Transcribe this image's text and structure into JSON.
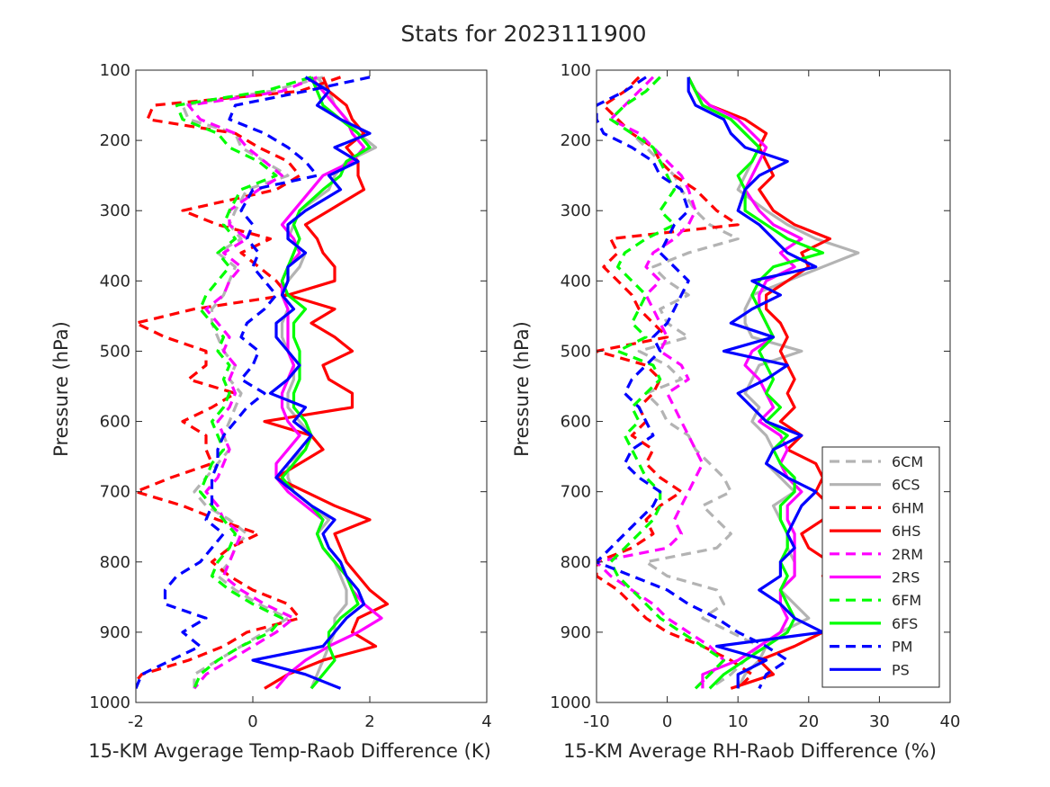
{
  "figure_title": "Stats for 2023111900",
  "legend": [
    {
      "label": "6CM",
      "color": "#b3b3b3",
      "dashed": true
    },
    {
      "label": "6CS",
      "color": "#b3b3b3",
      "dashed": false
    },
    {
      "label": "6HM",
      "color": "#ff0000",
      "dashed": true
    },
    {
      "label": "6HS",
      "color": "#ff0000",
      "dashed": false
    },
    {
      "label": "2RM",
      "color": "#ff00ff",
      "dashed": true
    },
    {
      "label": "2RS",
      "color": "#ff00ff",
      "dashed": false
    },
    {
      "label": "6FM",
      "color": "#00ff00",
      "dashed": true
    },
    {
      "label": "6FS",
      "color": "#00ff00",
      "dashed": false
    },
    {
      "label": "PM",
      "color": "#0000ff",
      "dashed": true
    },
    {
      "label": "PS",
      "color": "#0000ff",
      "dashed": false
    }
  ],
  "chart_data": [
    {
      "type": "line",
      "xlabel": "15-KM Avgerage Temp-Raob Difference (K)",
      "ylabel": "Pressure (hPa)",
      "xlim": [
        -2,
        4
      ],
      "ylim": [
        100,
        1000
      ],
      "y_reversed": true,
      "xticks": [
        "-2",
        "0",
        "2",
        "4"
      ],
      "yticks": [
        "100",
        "200",
        "300",
        "400",
        "500",
        "600",
        "700",
        "800",
        "900",
        "1000"
      ],
      "pressure_levels": [
        110,
        130,
        150,
        170,
        190,
        210,
        230,
        250,
        270,
        300,
        320,
        340,
        360,
        380,
        400,
        420,
        440,
        460,
        480,
        500,
        520,
        540,
        560,
        580,
        600,
        620,
        640,
        660,
        680,
        700,
        720,
        740,
        760,
        780,
        800,
        820,
        840,
        860,
        880,
        900,
        920,
        940,
        960,
        980
      ],
      "series": [
        {
          "name": "6CM",
          "values": [
            1.2,
            0.3,
            -1.2,
            -1.1,
            -0.3,
            -0.2,
            0.2,
            0.6,
            -0.1,
            -0.3,
            -0.4,
            -0.2,
            -0.6,
            -0.3,
            -0.4,
            -0.5,
            -0.7,
            -0.7,
            -0.6,
            -0.5,
            -0.3,
            -0.4,
            -0.2,
            -0.3,
            -0.4,
            -0.5,
            -0.4,
            -0.6,
            -0.8,
            -1.0,
            -0.8,
            -0.4,
            -0.1,
            -0.3,
            -0.4,
            -0.6,
            -0.3,
            0.1,
            0.6,
            0.2,
            -0.2,
            -0.6,
            -1.0,
            -1.0
          ]
        },
        {
          "name": "6CS",
          "values": [
            1.1,
            1.3,
            1.4,
            1.6,
            1.8,
            2.1,
            1.6,
            1.4,
            1.3,
            0.8,
            0.7,
            0.6,
            0.9,
            0.8,
            0.6,
            0.5,
            0.6,
            0.5,
            0.5,
            0.6,
            0.7,
            0.7,
            0.6,
            0.6,
            0.8,
            1.0,
            0.9,
            0.6,
            0.6,
            0.7,
            1.0,
            1.3,
            1.1,
            1.2,
            1.4,
            1.5,
            1.6,
            1.6,
            1.4,
            1.4,
            1.3,
            1.2,
            1.1,
            1.0
          ]
        },
        {
          "name": "6HM",
          "values": [
            1.5,
            0.8,
            -1.7,
            -1.8,
            -0.3,
            0.1,
            0.6,
            0.8,
            0.4,
            -1.2,
            -0.6,
            0.3,
            -0.2,
            0.1,
            0.4,
            0.6,
            -1.0,
            -2.0,
            -1.5,
            -0.8,
            -0.8,
            -1.1,
            -0.3,
            -0.7,
            -1.2,
            -0.8,
            -0.8,
            -0.7,
            -1.4,
            -2.0,
            -1.2,
            -0.6,
            0.1,
            -0.4,
            -0.7,
            -0.4,
            0.0,
            0.6,
            0.8,
            -0.1,
            -0.5,
            -1.1,
            -1.9,
            -2.1
          ]
        },
        {
          "name": "6HS",
          "values": [
            1.2,
            1.3,
            1.6,
            1.7,
            1.9,
            1.6,
            1.8,
            1.8,
            1.9,
            1.3,
            0.9,
            1.1,
            1.2,
            1.4,
            1.4,
            0.6,
            1.4,
            1.0,
            1.4,
            1.7,
            1.2,
            1.3,
            1.7,
            1.7,
            0.2,
            1.0,
            1.2,
            0.8,
            0.4,
            0.9,
            1.4,
            2.0,
            1.4,
            1.5,
            1.6,
            1.8,
            2.0,
            2.3,
            1.8,
            1.7,
            2.1,
            1.2,
            0.6,
            0.2
          ]
        },
        {
          "name": "2RM",
          "values": [
            1.1,
            0.5,
            -1.1,
            -0.9,
            -0.3,
            -0.1,
            0.2,
            0.5,
            0.1,
            -0.4,
            -0.4,
            -0.1,
            -0.5,
            -0.2,
            -0.4,
            -0.5,
            -0.8,
            -0.6,
            -0.4,
            -0.5,
            -0.3,
            -0.4,
            -0.3,
            -0.4,
            -0.6,
            -0.5,
            -0.4,
            -0.5,
            -0.6,
            -0.8,
            -0.6,
            -0.5,
            -0.2,
            -0.3,
            -0.4,
            -0.5,
            -0.2,
            0.2,
            0.7,
            0.4,
            0.0,
            -0.4,
            -0.8,
            -1.0
          ]
        },
        {
          "name": "2RS",
          "values": [
            1.0,
            1.2,
            1.4,
            1.6,
            1.7,
            1.9,
            1.7,
            1.2,
            1.0,
            0.7,
            0.5,
            0.7,
            0.8,
            0.6,
            0.5,
            0.5,
            0.6,
            0.6,
            0.6,
            0.6,
            0.7,
            0.6,
            0.5,
            0.5,
            0.6,
            0.8,
            0.6,
            0.4,
            0.4,
            0.6,
            0.9,
            1.2,
            1.1,
            1.2,
            1.4,
            1.6,
            1.7,
            1.9,
            2.2,
            1.8,
            1.3,
            0.9,
            0.6,
            0.4
          ]
        },
        {
          "name": "6FM",
          "values": [
            1.0,
            0.2,
            -1.3,
            -1.2,
            -0.6,
            -0.4,
            0.1,
            0.4,
            -0.2,
            -0.4,
            -0.5,
            -0.3,
            -0.6,
            -0.4,
            -0.6,
            -0.8,
            -0.9,
            -0.7,
            -0.5,
            -0.6,
            -0.4,
            -0.5,
            -0.4,
            -0.5,
            -0.7,
            -0.6,
            -0.5,
            -0.7,
            -0.8,
            -0.9,
            -0.7,
            -0.5,
            -0.3,
            -0.4,
            -0.6,
            -0.7,
            -0.4,
            0.0,
            0.5,
            0.3,
            -0.2,
            -0.6,
            -0.9,
            -1.0
          ]
        },
        {
          "name": "6FS",
          "values": [
            1.0,
            1.1,
            1.2,
            1.5,
            1.8,
            2.0,
            1.6,
            1.5,
            1.2,
            0.8,
            0.7,
            0.8,
            0.7,
            0.6,
            0.5,
            0.6,
            0.9,
            0.7,
            0.7,
            0.8,
            0.8,
            0.8,
            0.7,
            0.7,
            0.9,
            1.0,
            0.9,
            0.7,
            0.5,
            0.7,
            1.0,
            1.2,
            1.1,
            1.2,
            1.4,
            1.6,
            1.7,
            1.8,
            1.5,
            1.3,
            1.3,
            1.4,
            1.2,
            1.0
          ]
        },
        {
          "name": "PM",
          "values": [
            2.0,
            0.9,
            -0.3,
            -0.4,
            0.2,
            0.6,
            0.9,
            1.1,
            0.0,
            -0.2,
            0.0,
            -0.1,
            0.1,
            0.0,
            0.2,
            0.4,
            0.2,
            -0.1,
            -0.2,
            0.1,
            0.0,
            -0.2,
            0.2,
            -0.1,
            -0.3,
            -0.5,
            -0.6,
            -0.6,
            -0.7,
            -0.7,
            -0.7,
            -0.8,
            -0.5,
            -0.7,
            -0.9,
            -1.3,
            -1.5,
            -1.5,
            -0.8,
            -1.2,
            -0.9,
            -1.4,
            -1.9,
            -2.0
          ]
        },
        {
          "name": "PS",
          "values": [
            0.9,
            1.3,
            1.1,
            1.5,
            2.0,
            1.4,
            1.8,
            1.3,
            1.5,
            0.9,
            0.6,
            0.6,
            0.9,
            0.6,
            0.6,
            0.5,
            0.7,
            0.4,
            0.4,
            0.6,
            0.8,
            0.6,
            0.3,
            0.9,
            0.7,
            1.0,
            0.8,
            0.6,
            0.4,
            0.7,
            1.0,
            1.4,
            1.2,
            1.3,
            1.5,
            1.6,
            1.8,
            1.9,
            1.6,
            1.4,
            1.2,
            0.0,
            0.9,
            1.5
          ]
        }
      ]
    },
    {
      "type": "line",
      "xlabel": "15-KM Average RH-Raob Difference (%)",
      "ylabel": "Pressure (hPa)",
      "xlim": [
        -10,
        40
      ],
      "ylim": [
        100,
        1000
      ],
      "y_reversed": true,
      "xticks": [
        "-10",
        "0",
        "10",
        "20",
        "30",
        "40"
      ],
      "yticks": [
        "100",
        "200",
        "300",
        "400",
        "500",
        "600",
        "700",
        "800",
        "900",
        "1000"
      ],
      "pressure_levels": [
        110,
        130,
        150,
        170,
        190,
        210,
        230,
        250,
        270,
        300,
        320,
        340,
        360,
        380,
        400,
        420,
        440,
        460,
        480,
        500,
        520,
        540,
        560,
        580,
        600,
        620,
        640,
        660,
        680,
        700,
        720,
        740,
        760,
        780,
        800,
        820,
        840,
        860,
        880,
        900,
        920,
        940,
        960,
        980
      ],
      "series": [
        {
          "name": "6CM",
          "values": [
            -1,
            -3,
            -6,
            -8,
            -5,
            -3,
            -1,
            1,
            2,
            4,
            6,
            10,
            3,
            -2,
            0,
            3,
            -1,
            0,
            3,
            -4,
            0,
            2,
            -3,
            -1,
            0,
            3,
            4,
            6,
            8,
            9,
            5,
            7,
            9,
            7,
            -3,
            0,
            7,
            8,
            5,
            9,
            13,
            11,
            9,
            6
          ]
        },
        {
          "name": "6CS",
          "values": [
            3,
            4,
            5,
            9,
            11,
            13,
            12,
            11,
            10,
            14,
            17,
            21,
            27,
            22,
            17,
            12,
            11,
            11,
            12,
            19,
            13,
            12,
            11,
            13,
            12,
            14,
            15,
            14,
            16,
            18,
            15,
            16,
            17,
            17,
            18,
            18,
            16,
            18,
            20,
            16,
            14,
            13,
            11,
            10
          ]
        },
        {
          "name": "6HM",
          "values": [
            -4,
            -6,
            -9,
            -7,
            -5,
            -2,
            -1,
            1,
            4,
            7,
            10,
            -8,
            -7,
            -9,
            -7,
            -5,
            -4,
            -2,
            0,
            -10,
            -3,
            -1,
            -2,
            -4,
            -3,
            -5,
            -2,
            -3,
            -1,
            2,
            -1,
            -3,
            -2,
            -5,
            -10,
            -10,
            -7,
            -5,
            -3,
            0,
            5,
            9,
            12,
            10
          ]
        },
        {
          "name": "6HS",
          "values": [
            3,
            4,
            6,
            11,
            14,
            13,
            14,
            15,
            13,
            15,
            18,
            23,
            19,
            20,
            17,
            14,
            14,
            16,
            17,
            16,
            17,
            18,
            17,
            18,
            16,
            19,
            17,
            21,
            22,
            21,
            23,
            22,
            19,
            20,
            23,
            22,
            24,
            26,
            24,
            22,
            18,
            13,
            15,
            9
          ]
        },
        {
          "name": "2RM",
          "values": [
            -2,
            -4,
            -6,
            -8,
            -4,
            -2,
            0,
            2,
            3,
            4,
            3,
            1,
            -2,
            -3,
            -1,
            -3,
            -2,
            -1,
            0,
            -1,
            2,
            3,
            0,
            1,
            2,
            3,
            4,
            5,
            4,
            3,
            2,
            1,
            2,
            0,
            -10,
            -8,
            -5,
            -2,
            0,
            3,
            6,
            8,
            6,
            4
          ]
        },
        {
          "name": "2RS",
          "values": [
            3,
            4,
            6,
            10,
            12,
            14,
            13,
            12,
            11,
            13,
            15,
            19,
            16,
            18,
            14,
            13,
            13,
            14,
            15,
            12,
            11,
            13,
            14,
            15,
            13,
            16,
            17,
            16,
            17,
            19,
            17,
            17,
            18,
            18,
            18,
            18,
            16,
            16,
            17,
            16,
            13,
            10,
            5,
            5
          ]
        },
        {
          "name": "6FM",
          "values": [
            -1,
            -3,
            -6,
            -8,
            -5,
            -2,
            -1,
            0,
            1,
            -1,
            1,
            -3,
            -6,
            -7,
            -5,
            -3,
            -4,
            -5,
            -3,
            -7,
            -2,
            -1,
            -3,
            -5,
            -4,
            -6,
            -5,
            -4,
            -3,
            -1,
            -1,
            -2,
            -4,
            -6,
            -8,
            -7,
            -5,
            -3,
            -1,
            2,
            5,
            8,
            6,
            4
          ]
        },
        {
          "name": "6FS",
          "values": [
            3,
            4,
            5,
            9,
            11,
            13,
            12,
            10,
            11,
            11,
            14,
            17,
            22,
            15,
            13,
            12,
            13,
            14,
            15,
            13,
            14,
            15,
            14,
            16,
            14,
            17,
            15,
            16,
            18,
            18,
            16,
            16,
            17,
            17,
            16,
            17,
            16,
            17,
            18,
            17,
            14,
            11,
            8,
            6
          ]
        },
        {
          "name": "PM",
          "values": [
            -3,
            -6,
            -10,
            -10,
            -9,
            -5,
            -2,
            -1,
            2,
            3,
            1,
            0,
            -1,
            1,
            3,
            2,
            1,
            0,
            -2,
            -1,
            -3,
            -5,
            -6,
            -4,
            -3,
            -2,
            -5,
            -6,
            -4,
            -1,
            -2,
            -4,
            -6,
            -8,
            -10,
            -5,
            0,
            3,
            7,
            10,
            14,
            17,
            14,
            13
          ]
        },
        {
          "name": "PS",
          "values": [
            3,
            3,
            4,
            8,
            9,
            11,
            17,
            13,
            11,
            10,
            13,
            15,
            17,
            21,
            12,
            16,
            12,
            9,
            15,
            8,
            17,
            14,
            10,
            12,
            14,
            19,
            15,
            14,
            17,
            21,
            19,
            18,
            17,
            18,
            16,
            16,
            13,
            16,
            18,
            22,
            7,
            14,
            10,
            10
          ]
        }
      ]
    }
  ]
}
